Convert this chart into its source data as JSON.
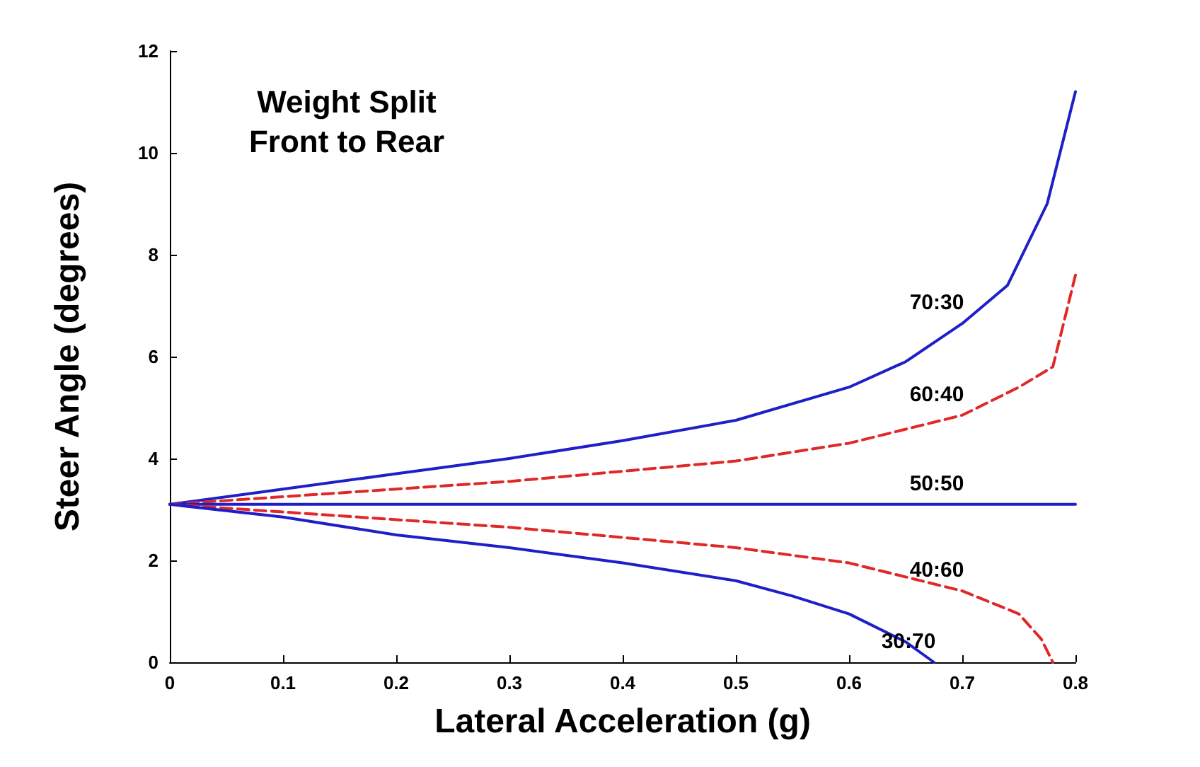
{
  "chart_data": {
    "type": "line",
    "title": "Weight Split\nFront to Rear",
    "xlabel": "Lateral Acceleration (g)",
    "ylabel": "Steer Angle (degrees)",
    "xlim": [
      0,
      0.8
    ],
    "ylim": [
      0,
      12
    ],
    "xticks": [
      0,
      0.1,
      0.2,
      0.3,
      0.4,
      0.5,
      0.6,
      0.7,
      0.8
    ],
    "yticks": [
      0,
      2,
      4,
      6,
      8,
      10,
      12
    ],
    "grid": false,
    "legend": false,
    "marker": "none",
    "series": [
      {
        "name": "70:30",
        "color": "#1f1fc8",
        "line_style": "solid",
        "x": [
          0,
          0.1,
          0.2,
          0.3,
          0.4,
          0.5,
          0.6,
          0.65,
          0.7,
          0.74,
          0.775,
          0.8
        ],
        "values": [
          3.1,
          3.4,
          3.7,
          4.0,
          4.35,
          4.75,
          5.4,
          5.9,
          6.65,
          7.4,
          9.0,
          11.2
        ]
      },
      {
        "name": "60:40",
        "color": "#e02828",
        "line_style": "dashed",
        "x": [
          0,
          0.1,
          0.2,
          0.3,
          0.4,
          0.5,
          0.6,
          0.7,
          0.75,
          0.78,
          0.8
        ],
        "values": [
          3.1,
          3.25,
          3.4,
          3.55,
          3.75,
          3.95,
          4.3,
          4.85,
          5.4,
          5.8,
          7.6
        ]
      },
      {
        "name": "50:50",
        "color": "#1f1fc8",
        "line_style": "solid",
        "x": [
          0,
          0.7,
          0.8
        ],
        "values": [
          3.1,
          3.1,
          3.1
        ]
      },
      {
        "name": "40:60",
        "color": "#e02828",
        "line_style": "dashed",
        "x": [
          0,
          0.1,
          0.2,
          0.3,
          0.4,
          0.5,
          0.6,
          0.7,
          0.75,
          0.77,
          0.78
        ],
        "values": [
          3.1,
          2.95,
          2.8,
          2.65,
          2.45,
          2.25,
          1.95,
          1.4,
          0.95,
          0.45,
          0
        ]
      },
      {
        "name": "30:70",
        "color": "#1f1fc8",
        "line_style": "solid",
        "x": [
          0,
          0.1,
          0.2,
          0.3,
          0.4,
          0.5,
          0.55,
          0.6,
          0.65,
          0.675
        ],
        "values": [
          3.1,
          2.85,
          2.5,
          2.25,
          1.95,
          1.6,
          1.3,
          0.95,
          0.4,
          0
        ]
      }
    ]
  }
}
